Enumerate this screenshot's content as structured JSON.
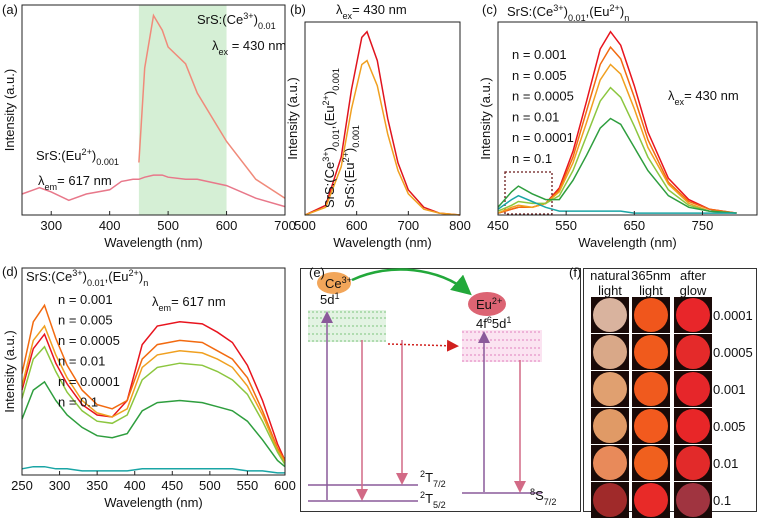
{
  "chart_data": [
    {
      "type": "line",
      "panel_label": "(a)",
      "x_label": "Wavelength (nm)",
      "y_label": "Intensity (a.u.)",
      "xlim": [
        250,
        700
      ],
      "xticks": [
        300,
        400,
        500,
        600,
        700
      ],
      "ylim": [
        0,
        1
      ],
      "highlight": [
        450,
        600
      ],
      "highlight_color": "#d5efd5",
      "x": [
        250,
        270,
        280,
        300,
        330,
        360,
        400,
        420,
        440,
        450,
        460,
        475,
        490,
        500,
        530,
        550,
        600,
        650,
        700
      ],
      "series": [
        {
          "color": "#e8788a",
          "values": [
            0.1,
            0.12,
            0.13,
            0.11,
            0.07,
            0.1,
            0.12,
            0.16,
            0.17,
            0.17,
            0.18,
            0.19,
            0.19,
            0.18,
            0.17,
            0.17,
            0.14,
            0.08,
            0.04
          ]
        },
        {
          "color": "#f08a7a",
          "values": [
            null,
            null,
            null,
            null,
            null,
            null,
            null,
            null,
            null,
            0.25,
            0.7,
            0.95,
            0.88,
            0.8,
            0.72,
            0.58,
            0.35,
            0.17,
            0.08
          ]
        }
      ],
      "annotations": [
        {
          "color": "#f08a7a",
          "parts": [
            {
              "text": "SrS:(Ce"
            },
            {
              "text": "3+",
              "shift": "super"
            },
            {
              "text": ")"
            },
            {
              "text": "0.01",
              "shift": "sub"
            }
          ]
        },
        {
          "color": "#111111",
          "parts": [
            {
              "text": "λ"
            },
            {
              "text": "ex",
              "shift": "sub"
            },
            {
              "text": " = 430 nm"
            }
          ]
        },
        {
          "color": "#e8788a",
          "parts": [
            {
              "text": "SrS:(Eu"
            },
            {
              "text": "2+",
              "shift": "super"
            },
            {
              "text": ")"
            },
            {
              "text": "0.001",
              "shift": "sub"
            }
          ]
        },
        {
          "color": "#111111",
          "parts": [
            {
              "text": "λ"
            },
            {
              "text": "em",
              "shift": "sub"
            },
            {
              "text": "= 617 nm"
            }
          ]
        }
      ]
    },
    {
      "type": "line",
      "panel_label": "(b)",
      "x_label": "Wavelength (nm)",
      "y_label": "Intensity (a.u.)",
      "xlim": [
        500,
        800
      ],
      "xticks": [
        500,
        600,
        700,
        800
      ],
      "ylim": [
        0,
        1
      ],
      "x": [
        500,
        540,
        570,
        590,
        610,
        620,
        640,
        660,
        680,
        700,
        730,
        760,
        800
      ],
      "series": [
        {
          "color": "#e0141e",
          "values": [
            0,
            0.05,
            0.3,
            0.65,
            0.92,
            0.95,
            0.8,
            0.5,
            0.27,
            0.13,
            0.04,
            0.01,
            0
          ]
        },
        {
          "color": "#f0a020",
          "values": [
            0,
            0.04,
            0.25,
            0.55,
            0.78,
            0.8,
            0.67,
            0.42,
            0.23,
            0.11,
            0.03,
            0.01,
            0
          ]
        }
      ],
      "annotations": [
        {
          "color": "#111111",
          "parts": [
            {
              "text": "λ"
            },
            {
              "text": "ex",
              "shift": "sub"
            },
            {
              "text": "= 430 nm"
            }
          ]
        },
        {
          "color": "#e0141e",
          "parts": [
            {
              "text": "SrS:(Ce"
            },
            {
              "text": "3+",
              "shift": "super"
            },
            {
              "text": ")"
            },
            {
              "text": "0.01",
              "shift": "sub"
            },
            {
              "text": ",(Eu"
            },
            {
              "text": "2+",
              "shift": "super"
            },
            {
              "text": ")"
            },
            {
              "text": "0.001",
              "shift": "sub"
            }
          ]
        },
        {
          "color": "#f0a020",
          "parts": [
            {
              "text": "SrS:(Eu"
            },
            {
              "text": "2+",
              "shift": "super"
            },
            {
              "text": ")"
            },
            {
              "text": "0.001",
              "shift": "sub"
            }
          ]
        }
      ]
    },
    {
      "type": "line",
      "panel_label": "(c)",
      "x_label": "Wavelength (nm)",
      "y_label": "Intensity (a.u.)",
      "xlim": [
        450,
        830
      ],
      "xticks": [
        450,
        550,
        650,
        750
      ],
      "ylim": [
        0,
        1
      ],
      "x": [
        450,
        470,
        480,
        500,
        520,
        540,
        560,
        580,
        600,
        615,
        630,
        650,
        670,
        700,
        730,
        760,
        800
      ],
      "series": [
        {
          "name": "n = 0.001",
          "color": "#e8141e",
          "values": [
            0.01,
            0.03,
            0.04,
            0.04,
            0.06,
            0.14,
            0.33,
            0.59,
            0.86,
            0.95,
            0.88,
            0.67,
            0.43,
            0.19,
            0.08,
            0.03,
            0.01
          ]
        },
        {
          "name": "n = 0.005",
          "color": "#f26a10",
          "values": [
            0.01,
            0.03,
            0.04,
            0.04,
            0.06,
            0.13,
            0.3,
            0.54,
            0.78,
            0.87,
            0.81,
            0.61,
            0.39,
            0.17,
            0.07,
            0.03,
            0.01
          ]
        },
        {
          "name": "n = 0.0005",
          "color": "#f0a020",
          "values": [
            0.01,
            0.04,
            0.05,
            0.04,
            0.06,
            0.12,
            0.27,
            0.48,
            0.7,
            0.78,
            0.73,
            0.55,
            0.35,
            0.16,
            0.06,
            0.02,
            0.01
          ]
        },
        {
          "name": "n = 0.01",
          "color": "#8cc63f",
          "values": [
            0.02,
            0.05,
            0.07,
            0.06,
            0.06,
            0.1,
            0.23,
            0.41,
            0.59,
            0.66,
            0.61,
            0.46,
            0.3,
            0.13,
            0.05,
            0.02,
            0.01
          ]
        },
        {
          "name": "n = 0.0001",
          "color": "#2e9e3e",
          "values": [
            0.04,
            0.12,
            0.15,
            0.11,
            0.08,
            0.08,
            0.18,
            0.31,
            0.45,
            0.5,
            0.47,
            0.35,
            0.23,
            0.1,
            0.04,
            0.02,
            0.01
          ]
        },
        {
          "name": "n = 0.1",
          "color": "#1aa5a5",
          "values": [
            0.03,
            0.08,
            0.1,
            0.07,
            0.04,
            0.02,
            0.02,
            0.02,
            0.02,
            0.02,
            0.02,
            0.01,
            0.01,
            0.01,
            0.01,
            0.01,
            0.01
          ]
        }
      ],
      "annotations": [
        {
          "color": "#111111",
          "parts": [
            {
              "text": "SrS:(Ce"
            },
            {
              "text": "3+",
              "shift": "super"
            },
            {
              "text": ")"
            },
            {
              "text": "0.01",
              "shift": "sub"
            },
            {
              "text": ",(Eu"
            },
            {
              "text": "2+",
              "shift": "super"
            },
            {
              "text": ")"
            },
            {
              "text": "n",
              "shift": "sub"
            }
          ]
        },
        {
          "color": "#111111",
          "parts": [
            {
              "text": "λ"
            },
            {
              "text": "ex",
              "shift": "sub"
            },
            {
              "text": "= 430 nm"
            }
          ]
        }
      ]
    },
    {
      "type": "line",
      "panel_label": "(d)",
      "x_label": "Wavelength (nm)",
      "y_label": "Intensity (a.u.)",
      "xlim": [
        250,
        600
      ],
      "xticks": [
        250,
        300,
        350,
        400,
        450,
        500,
        550,
        600
      ],
      "ylim": [
        0,
        1
      ],
      "x": [
        250,
        265,
        280,
        295,
        310,
        330,
        350,
        370,
        390,
        410,
        430,
        460,
        490,
        510,
        530,
        550,
        570,
        590,
        600
      ],
      "series": [
        {
          "name": "n = 0.001",
          "color": "#e8141e",
          "values": [
            0.41,
            0.61,
            0.68,
            0.54,
            0.44,
            0.34,
            0.29,
            0.28,
            0.36,
            0.63,
            0.72,
            0.74,
            0.73,
            0.69,
            0.64,
            0.53,
            0.36,
            0.15,
            0.07
          ]
        },
        {
          "name": "n = 0.005",
          "color": "#f26a10",
          "values": [
            0.49,
            0.74,
            0.82,
            0.66,
            0.53,
            0.41,
            0.34,
            0.32,
            0.36,
            0.56,
            0.63,
            0.65,
            0.64,
            0.6,
            0.56,
            0.47,
            0.31,
            0.13,
            0.07
          ]
        },
        {
          "name": "n = 0.0005",
          "color": "#f0a020",
          "values": [
            0.43,
            0.65,
            0.72,
            0.58,
            0.47,
            0.36,
            0.3,
            0.28,
            0.32,
            0.52,
            0.58,
            0.6,
            0.59,
            0.56,
            0.52,
            0.43,
            0.29,
            0.12,
            0.06
          ]
        },
        {
          "name": "n = 0.01",
          "color": "#8cc63f",
          "values": [
            0.37,
            0.56,
            0.62,
            0.5,
            0.4,
            0.31,
            0.26,
            0.25,
            0.29,
            0.46,
            0.52,
            0.54,
            0.53,
            0.5,
            0.46,
            0.39,
            0.26,
            0.11,
            0.05
          ]
        },
        {
          "name": "n = 0.0001",
          "color": "#2e9e3e",
          "values": [
            0.27,
            0.41,
            0.45,
            0.36,
            0.29,
            0.23,
            0.19,
            0.18,
            0.2,
            0.31,
            0.35,
            0.36,
            0.35,
            0.33,
            0.31,
            0.26,
            0.17,
            0.07,
            0.04
          ]
        },
        {
          "name": "n = 0.1",
          "color": "#1aa5a5",
          "values": [
            0.03,
            0.04,
            0.04,
            0.03,
            0.03,
            0.02,
            0.02,
            0.02,
            0.02,
            0.03,
            0.03,
            0.03,
            0.03,
            0.03,
            0.03,
            0.02,
            0.02,
            0.01,
            0.01
          ]
        }
      ],
      "annotations": [
        {
          "color": "#111111",
          "parts": [
            {
              "text": "SrS:(Ce"
            },
            {
              "text": "3+",
              "shift": "super"
            },
            {
              "text": ")"
            },
            {
              "text": "0.01",
              "shift": "sub"
            },
            {
              "text": ",(Eu"
            },
            {
              "text": "2+",
              "shift": "super"
            },
            {
              "text": ")"
            },
            {
              "text": "n",
              "shift": "sub"
            }
          ]
        },
        {
          "color": "#111111",
          "parts": [
            {
              "text": "λ"
            },
            {
              "text": "em",
              "shift": "sub"
            },
            {
              "text": "= 617 nm"
            }
          ]
        }
      ]
    }
  ],
  "diagram": {
    "panel_label": "(e)",
    "labels": [
      {
        "parts": [
          {
            "text": "Ce"
          },
          {
            "text": "3+",
            "shift": "super"
          }
        ]
      },
      {
        "parts": [
          {
            "text": "5d"
          },
          {
            "text": "1",
            "shift": "super"
          }
        ]
      },
      {
        "parts": [
          {
            "text": "Eu"
          },
          {
            "text": "2+",
            "shift": "super"
          }
        ]
      },
      {
        "parts": [
          {
            "text": "4f"
          },
          {
            "text": "6",
            "shift": "super"
          },
          {
            "text": "5d"
          },
          {
            "text": "1",
            "shift": "super"
          }
        ]
      },
      {
        "parts": [
          {
            "text": "2",
            "shift": "super"
          },
          {
            "text": "T"
          },
          {
            "text": "7/2",
            "shift": "sub"
          }
        ]
      },
      {
        "parts": [
          {
            "text": "2",
            "shift": "super"
          },
          {
            "text": "T"
          },
          {
            "text": "5/2",
            "shift": "sub"
          }
        ]
      },
      {
        "parts": [
          {
            "text": "8",
            "shift": "super"
          },
          {
            "text": "S"
          },
          {
            "text": "7/2",
            "shift": "sub"
          }
        ]
      }
    ]
  },
  "photo_grid": {
    "panel_label": "(f)",
    "columns": [
      {
        "lines": [
          "natural",
          "light"
        ]
      },
      {
        "lines": [
          "365nm",
          "light"
        ]
      },
      {
        "lines": [
          "after",
          "glow"
        ]
      }
    ],
    "rows": [
      "0.0001",
      "0.0005",
      "0.001",
      "0.005",
      "0.01",
      "0.1"
    ]
  }
}
